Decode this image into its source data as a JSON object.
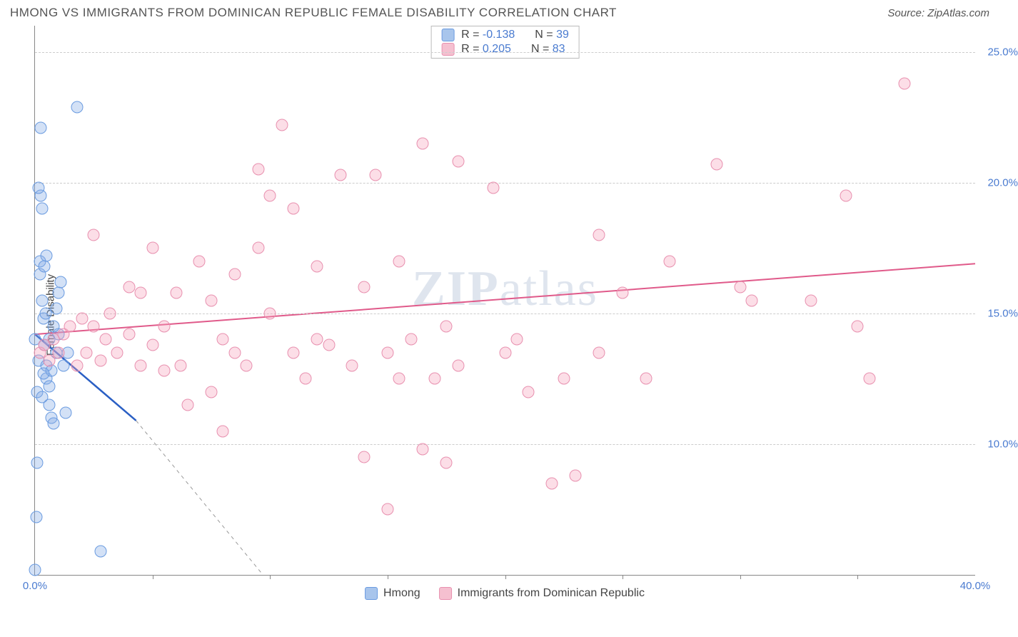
{
  "title": "HMONG VS IMMIGRANTS FROM DOMINICAN REPUBLIC FEMALE DISABILITY CORRELATION CHART",
  "source_label": "Source: ",
  "source_name": "ZipAtlas.com",
  "watermark_a": "ZIP",
  "watermark_b": "atlas",
  "ylabel": "Female Disability",
  "chart": {
    "type": "scatter",
    "background_color": "#ffffff",
    "grid_color": "#cccccc",
    "axis_color": "#888888",
    "tick_label_color": "#4a7bd0",
    "xlim": [
      0,
      40
    ],
    "ylim": [
      5,
      26
    ],
    "yticks": [
      10,
      15,
      20,
      25
    ],
    "ytick_labels": [
      "10.0%",
      "15.0%",
      "20.0%",
      "25.0%"
    ],
    "xtick_labels": [
      "0.0%",
      "40.0%"
    ],
    "xtick_minor": [
      5,
      10,
      15,
      20,
      25,
      30,
      35
    ],
    "point_radius": 8.5,
    "point_border_width": 1.5,
    "series": [
      {
        "name": "Hmong",
        "fill": "rgba(130,170,230,0.35)",
        "stroke": "#6a9be0",
        "R": "-0.138",
        "N": "39",
        "swatch_fill": "#a8c5ec",
        "swatch_border": "#6a9be0",
        "trend": {
          "x1": 0,
          "y1": 14.2,
          "x2": 4.3,
          "y2": 10.9,
          "color": "#2a5fc4",
          "width": 2.5
        },
        "trend_ext": {
          "x1": 4.3,
          "y1": 10.9,
          "x2": 9.7,
          "y2": 5,
          "color": "#999",
          "dash": true
        },
        "points": [
          [
            0.0,
            14.0
          ],
          [
            0.1,
            12.0
          ],
          [
            0.15,
            13.2
          ],
          [
            0.2,
            16.5
          ],
          [
            0.2,
            17.0
          ],
          [
            0.25,
            19.5
          ],
          [
            0.3,
            19.0
          ],
          [
            0.3,
            15.5
          ],
          [
            0.35,
            14.8
          ],
          [
            0.4,
            13.8
          ],
          [
            0.5,
            13.0
          ],
          [
            0.5,
            12.5
          ],
          [
            0.6,
            12.2
          ],
          [
            0.6,
            11.5
          ],
          [
            0.7,
            11.0
          ],
          [
            0.8,
            10.8
          ],
          [
            0.9,
            13.5
          ],
          [
            1.0,
            14.2
          ],
          [
            1.0,
            15.8
          ],
          [
            1.1,
            16.2
          ],
          [
            1.2,
            13.0
          ],
          [
            0.15,
            19.8
          ],
          [
            0.25,
            22.1
          ],
          [
            1.8,
            22.9
          ],
          [
            0.1,
            9.3
          ],
          [
            0.05,
            7.2
          ],
          [
            0.0,
            5.2
          ],
          [
            2.8,
            5.9
          ],
          [
            0.4,
            16.8
          ],
          [
            0.5,
            17.2
          ],
          [
            0.45,
            15.0
          ],
          [
            0.3,
            11.8
          ],
          [
            0.7,
            12.8
          ],
          [
            0.8,
            14.5
          ],
          [
            0.9,
            15.2
          ],
          [
            1.3,
            11.2
          ],
          [
            1.4,
            13.5
          ],
          [
            0.6,
            14.0
          ],
          [
            0.35,
            12.7
          ]
        ]
      },
      {
        "name": "Immigrants from Dominican Republic",
        "fill": "rgba(245,160,185,0.35)",
        "stroke": "#e890af",
        "R": "0.205",
        "N": "83",
        "swatch_fill": "#f5c0d0",
        "swatch_border": "#e890af",
        "trend": {
          "x1": 0,
          "y1": 14.2,
          "x2": 40,
          "y2": 16.9,
          "color": "#e05a8a",
          "width": 2
        },
        "points": [
          [
            0.2,
            13.5
          ],
          [
            0.4,
            13.8
          ],
          [
            0.6,
            13.2
          ],
          [
            0.8,
            14.0
          ],
          [
            1.0,
            13.5
          ],
          [
            1.2,
            14.2
          ],
          [
            1.5,
            14.5
          ],
          [
            1.8,
            13.0
          ],
          [
            2.0,
            14.8
          ],
          [
            2.2,
            13.5
          ],
          [
            2.5,
            14.5
          ],
          [
            2.5,
            18.0
          ],
          [
            2.8,
            13.2
          ],
          [
            3.0,
            14.0
          ],
          [
            3.2,
            15.0
          ],
          [
            3.5,
            13.5
          ],
          [
            4.0,
            14.2
          ],
          [
            4.0,
            16.0
          ],
          [
            4.5,
            13.0
          ],
          [
            4.5,
            15.8
          ],
          [
            5.0,
            13.8
          ],
          [
            5.0,
            17.5
          ],
          [
            5.5,
            12.8
          ],
          [
            5.5,
            14.5
          ],
          [
            6.0,
            15.8
          ],
          [
            6.2,
            13.0
          ],
          [
            6.5,
            11.5
          ],
          [
            7.0,
            17.0
          ],
          [
            7.5,
            12.0
          ],
          [
            7.5,
            15.5
          ],
          [
            8.0,
            14.0
          ],
          [
            8.0,
            10.5
          ],
          [
            8.5,
            13.5
          ],
          [
            8.5,
            16.5
          ],
          [
            9.0,
            13.0
          ],
          [
            9.5,
            17.5
          ],
          [
            9.5,
            20.5
          ],
          [
            10.0,
            15.0
          ],
          [
            10.0,
            19.5
          ],
          [
            10.5,
            22.2
          ],
          [
            11.0,
            13.5
          ],
          [
            11.0,
            19.0
          ],
          [
            11.5,
            12.5
          ],
          [
            12.0,
            16.8
          ],
          [
            12.0,
            14.0
          ],
          [
            12.5,
            13.8
          ],
          [
            13.0,
            20.3
          ],
          [
            13.5,
            13.0
          ],
          [
            14.0,
            16.0
          ],
          [
            14.0,
            9.5
          ],
          [
            14.5,
            20.3
          ],
          [
            15.0,
            13.5
          ],
          [
            15.0,
            7.5
          ],
          [
            15.5,
            12.5
          ],
          [
            15.5,
            17.0
          ],
          [
            16.0,
            14.0
          ],
          [
            16.5,
            9.8
          ],
          [
            16.5,
            21.5
          ],
          [
            17.0,
            12.5
          ],
          [
            17.5,
            9.3
          ],
          [
            17.5,
            14.5
          ],
          [
            18.0,
            13.0
          ],
          [
            18.0,
            20.8
          ],
          [
            19.5,
            19.8
          ],
          [
            20.0,
            13.5
          ],
          [
            20.5,
            14.0
          ],
          [
            21.0,
            12.0
          ],
          [
            22.0,
            8.5
          ],
          [
            22.5,
            12.5
          ],
          [
            23.0,
            8.8
          ],
          [
            24.0,
            13.5
          ],
          [
            24.0,
            18.0
          ],
          [
            25.0,
            15.8
          ],
          [
            26.0,
            12.5
          ],
          [
            27.0,
            17.0
          ],
          [
            29.0,
            20.7
          ],
          [
            30.0,
            16.0
          ],
          [
            30.5,
            15.5
          ],
          [
            33.0,
            15.5
          ],
          [
            34.5,
            19.5
          ],
          [
            35.0,
            14.5
          ],
          [
            35.5,
            12.5
          ],
          [
            37.0,
            23.8
          ]
        ]
      }
    ]
  },
  "legend": {
    "items": [
      {
        "label": "Hmong",
        "fill": "#a8c5ec",
        "border": "#6a9be0"
      },
      {
        "label": "Immigrants from Dominican Republic",
        "fill": "#f5c0d0",
        "border": "#e890af"
      }
    ]
  }
}
